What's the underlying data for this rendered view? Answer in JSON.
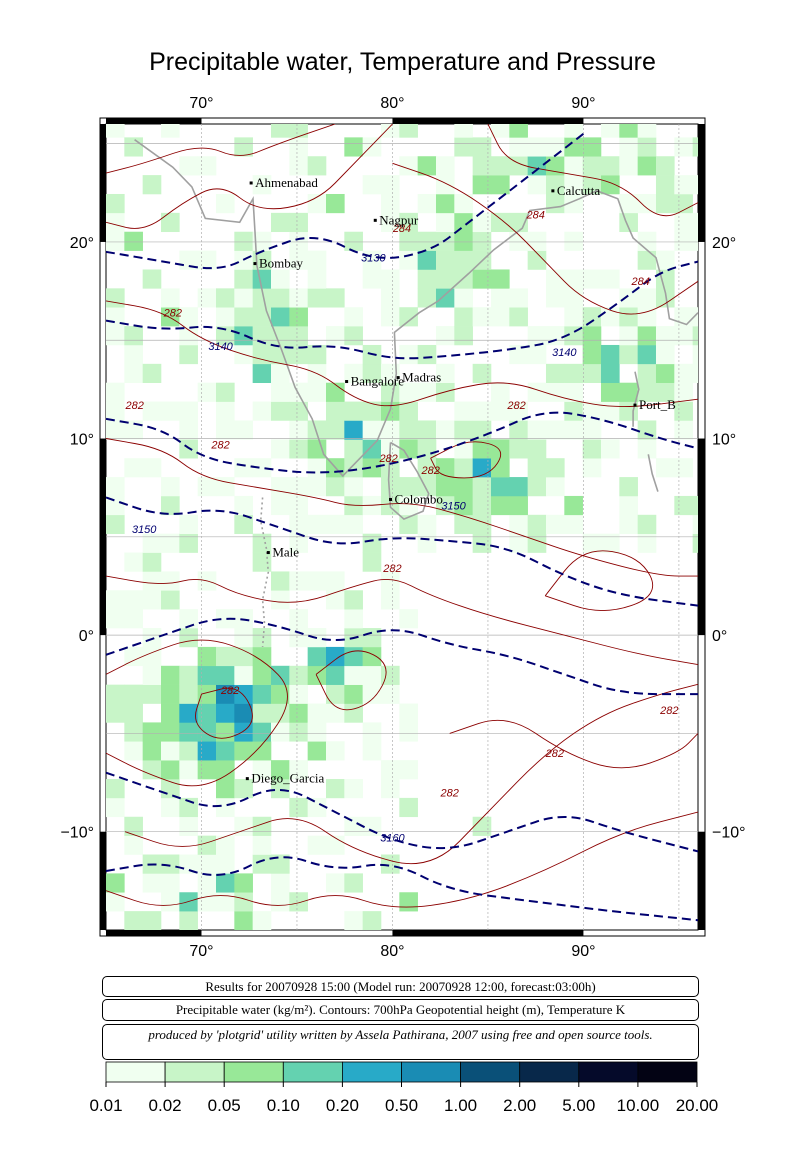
{
  "title": "Precipitable water, Temperature and Pressure",
  "map": {
    "lon_ticks": [
      {
        "lon": 70,
        "label": "70°"
      },
      {
        "lon": 80,
        "label": "80°"
      },
      {
        "lon": 90,
        "label": "90°"
      }
    ],
    "lat_ticks": [
      {
        "lat": 20,
        "label": "20°"
      },
      {
        "lat": 10,
        "label": "10°"
      },
      {
        "lat": 0,
        "label": "0°"
      },
      {
        "lat": -10,
        "label": "−10°"
      }
    ],
    "lon_range": [
      65,
      96
    ],
    "lat_range": [
      -15,
      26
    ],
    "cities": [
      {
        "name": "Ahmenabad",
        "lon": 72.6,
        "lat": 23.0
      },
      {
        "name": "Calcutta",
        "lon": 88.4,
        "lat": 22.6
      },
      {
        "name": "Nagpur",
        "lon": 79.1,
        "lat": 21.1
      },
      {
        "name": "Bombay",
        "lon": 72.8,
        "lat": 18.9
      },
      {
        "name": "Madras",
        "lon": 80.3,
        "lat": 13.1
      },
      {
        "name": "Bangalore",
        "lon": 77.6,
        "lat": 12.9
      },
      {
        "name": "Port_B",
        "lon": 92.7,
        "lat": 11.7
      },
      {
        "name": "Colombo",
        "lon": 79.9,
        "lat": 6.9
      },
      {
        "name": "Male",
        "lon": 73.5,
        "lat": 4.2
      },
      {
        "name": "Diego_Garcia",
        "lon": 72.4,
        "lat": -7.3
      }
    ],
    "contour_labels_temperature": [
      "284",
      "284",
      "284",
      "282",
      "282",
      "282",
      "282",
      "282",
      "282",
      "282",
      "282",
      "282",
      "282",
      "282"
    ],
    "contour_labels_height": [
      "3130",
      "3140",
      "3140",
      "3150",
      "3150",
      "3160"
    ],
    "line_colors": {
      "temperature": "#8b0000",
      "height": "#000070",
      "coast": "#a0a0a0"
    }
  },
  "info": {
    "results": "Results for 20070928 15:00 (Model run: 20070928 12:00, forecast:03:00h)",
    "legend": "Precipitable water (kg/m²).  Contours: 700hPa Geopotential height (m), Temperature K",
    "credit": "produced by 'plotgrid' utility written by Assela Pathirana, 2007 using free and open source tools."
  },
  "colorbar": {
    "labels": [
      "0.01",
      "0.02",
      "0.05",
      "0.10",
      "0.20",
      "0.50",
      "1.00",
      "2.00",
      "5.00",
      "10.00",
      "20.00"
    ],
    "colors": [
      "#f0fff0",
      "#c8f5c8",
      "#98e898",
      "#64d2b0",
      "#28aac8",
      "#1a8cb4",
      "#0a5078",
      "#08284a",
      "#050a2a",
      "#030314"
    ]
  }
}
